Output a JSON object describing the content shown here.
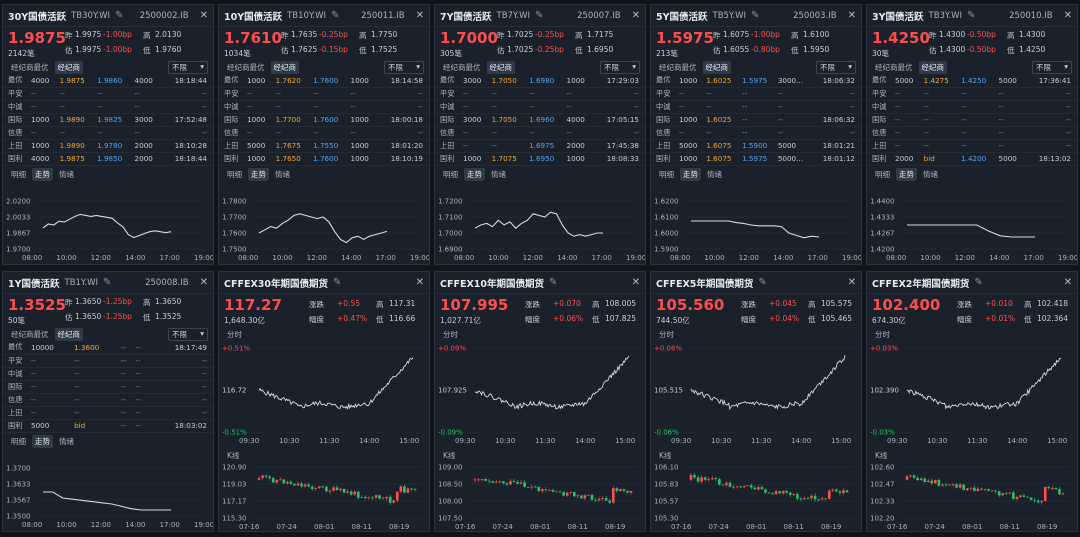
{
  "colors": {
    "up": "#ff4d4f",
    "down": "#27c26b",
    "line": "#d8dbe0",
    "bid": "#f2a43a",
    "ofr": "#53a4f4"
  },
  "bond_labels": {
    "zuo": "昨",
    "gao": "高",
    "di": "低",
    "gu": "估",
    "bi": "笔",
    "tab_best": "经纪商最优",
    "tab_broker": "经纪商",
    "select": "不限",
    "tab_detail": "明细",
    "tab_trend": "走势",
    "tab_mood": "情绪"
  },
  "fut_labels": {
    "zhangdie": "涨跌",
    "fudu": "幅度",
    "gao": "高",
    "di": "低",
    "fenshi": "分时",
    "kline": "K线"
  },
  "bond_panels": [
    {
      "name": "30Y国债活跃",
      "code": "TB30Y.WI",
      "exch": "2500002.IB",
      "price": "1.9875",
      "zuo": "1.9975",
      "chg1": "-1.00bp",
      "gao": "2.0130",
      "vol": "2142笔",
      "gu": "1.9975",
      "chg2": "-1.00bp",
      "di": "1.9760",
      "rows": [
        [
          "最优",
          "4000",
          "1.9875",
          "1.9860",
          "4000",
          "18:18:44"
        ],
        [
          "平安",
          "--",
          "--",
          "--",
          "--",
          "--"
        ],
        [
          "中诚",
          "--",
          "--",
          "--",
          "--",
          "--"
        ],
        [
          "国际",
          "1000",
          "1.9890",
          "1.9825",
          "3000",
          "17:52:48"
        ],
        [
          "信唐",
          "--",
          "--",
          "--",
          "--",
          "--"
        ],
        [
          "上田",
          "1000",
          "1.9890",
          "1.9780",
          "2000",
          "18:10:28"
        ],
        [
          "国利",
          "4000",
          "1.9875",
          "1.9850",
          "2000",
          "18:18:44"
        ]
      ],
      "chart": {
        "yt": [
          "2.0200",
          "2.0033",
          "1.9867",
          "1.9700"
        ],
        "xt": [
          "08:00",
          "10:00",
          "12:00",
          "14:00",
          "17:00",
          "19:00"
        ],
        "ymin": 1.97,
        "ymax": 2.02,
        "pts": [
          1.992,
          1.996,
          1.995,
          1.999,
          1.998,
          2.001,
          2.004,
          2.006,
          2.005,
          2.004,
          2.005,
          2.004,
          2.003,
          2.002,
          1.997,
          1.993,
          1.985,
          1.982,
          1.984,
          1.986,
          1.988,
          1.989,
          1.988,
          1.987,
          1.988
        ]
      }
    },
    {
      "name": "10Y国债活跃",
      "code": "TB10Y.WI",
      "exch": "250011.IB",
      "price": "1.7610",
      "zuo": "1.7635",
      "chg1": "-0.25bp",
      "gao": "1.7750",
      "vol": "1034笔",
      "gu": "1.7625",
      "chg2": "-0.15bp",
      "di": "1.7525",
      "rows": [
        [
          "最优",
          "1000",
          "1.7620",
          "1.7600",
          "1000",
          "18:14:58"
        ],
        [
          "平安",
          "--",
          "--",
          "--",
          "--",
          "--"
        ],
        [
          "中诚",
          "--",
          "--",
          "--",
          "--",
          "--"
        ],
        [
          "国际",
          "1000",
          "1.7700",
          "1.7600",
          "1000",
          "18:00:18"
        ],
        [
          "信唐",
          "--",
          "--",
          "--",
          "--",
          "--"
        ],
        [
          "上田",
          "5000",
          "1.7675",
          "1.7550",
          "1000",
          "18:01:20"
        ],
        [
          "国利",
          "1000",
          "1.7650",
          "1.7600",
          "1000",
          "18:10:19"
        ]
      ],
      "chart": {
        "yt": [
          "1.7800",
          "1.7700",
          "1.7600",
          "1.7500"
        ],
        "xt": [
          "08:00",
          "10:00",
          "12:00",
          "14:00",
          "17:00",
          "19:00"
        ],
        "ymin": 1.75,
        "ymax": 1.78,
        "pts": [
          1.76,
          1.762,
          1.764,
          1.763,
          1.766,
          1.768,
          1.771,
          1.772,
          1.771,
          1.77,
          1.769,
          1.77,
          1.767,
          1.761,
          1.756,
          1.754,
          1.757,
          1.758,
          1.756,
          1.758,
          1.759,
          1.76,
          1.761
        ]
      }
    },
    {
      "name": "7Y国债活跃",
      "code": "TB7Y.WI",
      "exch": "250007.IB",
      "price": "1.7000",
      "zuo": "1.7025",
      "chg1": "-0.25bp",
      "gao": "1.7175",
      "vol": "305笔",
      "gu": "1.7025",
      "chg2": "-0.25bp",
      "di": "1.6950",
      "rows": [
        [
          "最优",
          "3000",
          "1.7050",
          "1.6980",
          "1000",
          "17:29:03"
        ],
        [
          "平安",
          "--",
          "--",
          "--",
          "--",
          "--"
        ],
        [
          "中诚",
          "--",
          "--",
          "--",
          "--",
          "--"
        ],
        [
          "国际",
          "3000",
          "1.7050",
          "1.6960",
          "4000",
          "17:05:15"
        ],
        [
          "信唐",
          "--",
          "--",
          "--",
          "--",
          "--"
        ],
        [
          "上田",
          "--",
          "--",
          "1.6975",
          "2000",
          "17:45:38"
        ],
        [
          "国利",
          "1000",
          "1.7075",
          "1.6950",
          "1000",
          "18:08:33"
        ]
      ],
      "chart": {
        "yt": [
          "1.7200",
          "1.7100",
          "1.7000",
          "1.6900"
        ],
        "xt": [
          "08:00",
          "10:00",
          "12:00",
          "14:00",
          "17:00",
          "19:00"
        ],
        "ymin": 1.69,
        "ymax": 1.72,
        "pts": [
          1.703,
          1.705,
          1.706,
          1.704,
          1.708,
          1.705,
          1.707,
          1.703,
          1.706,
          1.708,
          1.712,
          1.711,
          1.71,
          1.713,
          1.712,
          1.705,
          1.7,
          1.698,
          1.699,
          1.698,
          1.699,
          1.7,
          1.7
        ]
      }
    },
    {
      "name": "5Y国债活跃",
      "code": "TB5Y.WI",
      "exch": "250003.IB",
      "price": "1.5975",
      "zuo": "1.6075",
      "chg1": "-1.00bp",
      "gao": "1.6100",
      "vol": "213笔",
      "gu": "1.6055",
      "chg2": "-0.80bp",
      "di": "1.5950",
      "rows": [
        [
          "最优",
          "1000",
          "1.6025",
          "1.5975",
          "3000...",
          "18:06:32"
        ],
        [
          "平安",
          "--",
          "--",
          "--",
          "--",
          "--"
        ],
        [
          "中诚",
          "--",
          "--",
          "--",
          "--",
          "--"
        ],
        [
          "国际",
          "1000",
          "1.6025",
          "--",
          "--",
          "18:06:32"
        ],
        [
          "信唐",
          "--",
          "--",
          "--",
          "--",
          "--"
        ],
        [
          "上田",
          "5000",
          "1.6075",
          "1.5900",
          "5000",
          "18:01:21"
        ],
        [
          "国利",
          "1000",
          "1.6075",
          "1.5975",
          "5000...",
          "18:01:12"
        ]
      ],
      "chart": {
        "yt": [
          "1.6200",
          "1.6100",
          "1.6000",
          "1.5900"
        ],
        "xt": [
          "08:00",
          "10:00",
          "12:00",
          "14:00",
          "17:00",
          "19:00"
        ],
        "ymin": 1.59,
        "ymax": 1.62,
        "pts": [
          1.6075,
          1.6075,
          1.6075,
          1.6075,
          1.6075,
          1.6075,
          1.6065,
          1.606,
          1.605,
          1.6045,
          1.6045,
          1.6045,
          1.604,
          1.6,
          1.5985,
          1.597,
          1.598,
          1.5975
        ]
      }
    },
    {
      "name": "3Y国债活跃",
      "code": "TB3Y.WI",
      "exch": "250010.IB",
      "price": "1.4250",
      "zuo": "1.4300",
      "chg1": "-0.50bp",
      "gao": "1.4300",
      "vol": "30笔",
      "gu": "1.4300",
      "chg2": "-0.50bp",
      "di": "1.4250",
      "rows": [
        [
          "最优",
          "5000",
          "1.4275",
          "1.4250",
          "5000",
          "17:36:41"
        ],
        [
          "平安",
          "--",
          "--",
          "--",
          "--",
          "--"
        ],
        [
          "中诚",
          "--",
          "--",
          "--",
          "--",
          "--"
        ],
        [
          "国际",
          "--",
          "--",
          "--",
          "--",
          "--"
        ],
        [
          "信唐",
          "--",
          "--",
          "--",
          "--",
          "--"
        ],
        [
          "上田",
          "--",
          "--",
          "--",
          "--",
          "--"
        ],
        [
          "国利",
          "2000",
          "bid",
          "1.4200",
          "5000",
          "18:13:02"
        ]
      ],
      "chart": {
        "yt": [
          "1.4400",
          "1.4333",
          "1.4267",
          "1.4200"
        ],
        "xt": [
          "08:00",
          "10:00",
          "12:00",
          "14:00",
          "17:00",
          "19:00"
        ],
        "ymin": 1.42,
        "ymax": 1.44,
        "pts": [
          1.43,
          1.43,
          1.43,
          1.43,
          1.43,
          1.43,
          1.43,
          1.4275,
          1.4255,
          1.425,
          1.425,
          1.425
        ]
      }
    },
    {
      "name": "1Y国债活跃",
      "code": "TB1Y.WI",
      "exch": "250008.IB",
      "price": "1.3525",
      "zuo": "1.3650",
      "chg1": "-1.25bp",
      "gao": "1.3650",
      "vol": "50笔",
      "gu": "1.3650",
      "chg2": "-1.25bp",
      "di": "1.3525",
      "rows": [
        [
          "最优",
          "10000",
          "1.3600",
          "--",
          "--",
          "18:17:49"
        ],
        [
          "平安",
          "--",
          "--",
          "--",
          "--",
          "--"
        ],
        [
          "中诚",
          "--",
          "--",
          "--",
          "--",
          "--"
        ],
        [
          "国际",
          "--",
          "--",
          "--",
          "--",
          "--"
        ],
        [
          "信唐",
          "--",
          "--",
          "--",
          "--",
          "--"
        ],
        [
          "上田",
          "--",
          "--",
          "--",
          "--",
          "--"
        ],
        [
          "国利",
          "5000",
          "bid",
          "--",
          "--",
          "18:03:02"
        ]
      ],
      "chart": {
        "yt": [
          "1.3700",
          "1.3633",
          "1.3567",
          "1.3500"
        ],
        "xt": [
          "08:00",
          "10:00",
          "12:00",
          "14:00",
          "17:00",
          "19:00"
        ],
        "ymin": 1.35,
        "ymax": 1.37,
        "pts": [
          1.36,
          1.36,
          1.3575,
          1.357,
          1.3565,
          1.356,
          1.3555,
          1.355,
          1.354,
          1.353,
          1.3525,
          1.3525,
          1.3525,
          1.3525
        ]
      }
    }
  ],
  "fut_panels": [
    {
      "name": "CFFEX30年期国债期货",
      "price": "117.27",
      "zd": "+0.55",
      "gao": "117.31",
      "amt": "1,648.30亿",
      "fd": "+0.47%",
      "di": "116.66",
      "ft": {
        "ytop": "+0.51%",
        "ymid": "116.72",
        "ybot": "-0.51%",
        "xt": [
          "09:30",
          "10:30",
          "11:30",
          "14:00",
          "15:00"
        ]
      },
      "kt": {
        "yt": [
          "120.90",
          "119.03",
          "117.17",
          "115.30"
        ],
        "xt": [
          "07-16",
          "07-24",
          "08-01",
          "08-11",
          "08-19"
        ],
        "ymin": 115.3,
        "ymax": 120.9
      }
    },
    {
      "name": "CFFEX10年期国债期货",
      "price": "107.995",
      "zd": "+0.070",
      "gao": "108.005",
      "amt": "1,027.71亿",
      "fd": "+0.06%",
      "di": "107.825",
      "ft": {
        "ytop": "+0.09%",
        "ymid": "107.925",
        "ybot": "-0.09%",
        "xt": [
          "09:30",
          "10:30",
          "11:30",
          "14:00",
          "15:00"
        ]
      },
      "kt": {
        "yt": [
          "109.00",
          "108.50",
          "108.00",
          "107.50"
        ],
        "xt": [
          "07-16",
          "07-24",
          "08-01",
          "08-11",
          "08-19"
        ],
        "ymin": 107.5,
        "ymax": 109.0
      }
    },
    {
      "name": "CFFEX5年期国债期货",
      "price": "105.560",
      "zd": "+0.045",
      "gao": "105.575",
      "amt": "744.50亿",
      "fd": "+0.04%",
      "di": "105.465",
      "ft": {
        "ytop": "+0.06%",
        "ymid": "105.515",
        "ybot": "-0.06%",
        "xt": [
          "09:30",
          "10:30",
          "11:30",
          "14:00",
          "15:00"
        ]
      },
      "kt": {
        "yt": [
          "106.10",
          "105.83",
          "105.57",
          "105.30"
        ],
        "xt": [
          "07-16",
          "07-24",
          "08-01",
          "08-11",
          "08-19"
        ],
        "ymin": 105.3,
        "ymax": 106.1
      }
    },
    {
      "name": "CFFEX2年期国债期货",
      "price": "102.400",
      "zd": "+0.010",
      "gao": "102.418",
      "amt": "674.30亿",
      "fd": "+0.01%",
      "di": "102.364",
      "ft": {
        "ytop": "+0.03%",
        "ymid": "102.390",
        "ybot": "-0.03%",
        "xt": [
          "09:30",
          "10:30",
          "11:30",
          "14:00",
          "15:00"
        ]
      },
      "kt": {
        "yt": [
          "102.60",
          "102.47",
          "102.33",
          "102.20"
        ],
        "xt": [
          "07-16",
          "07-24",
          "08-01",
          "08-11",
          "08-19"
        ],
        "ymin": 102.2,
        "ymax": 102.6
      }
    }
  ]
}
